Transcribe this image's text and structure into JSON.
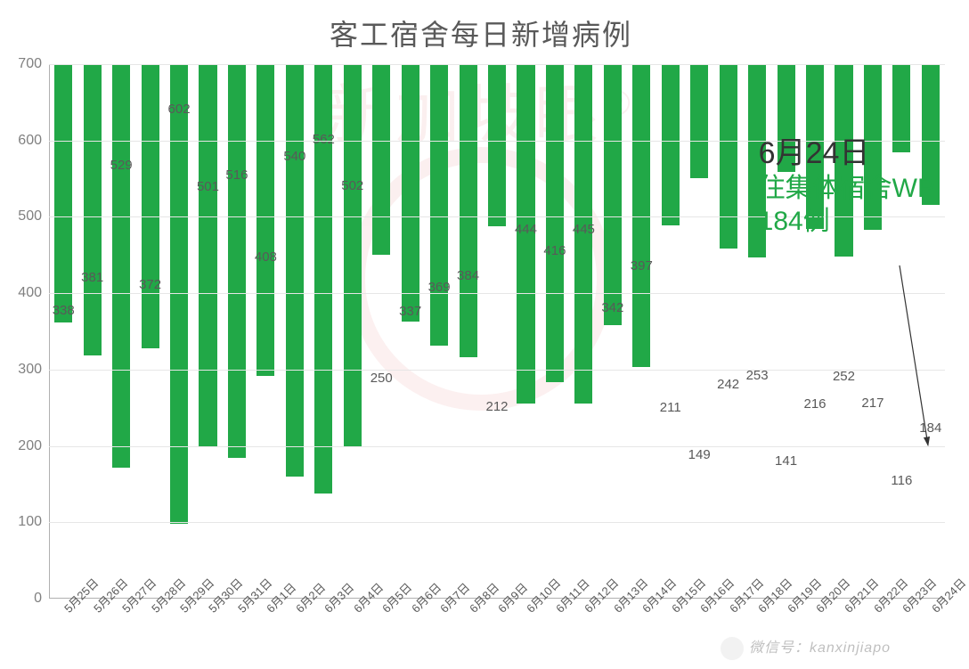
{
  "chart": {
    "type": "bar",
    "title": "客工宿舍每日新增病例",
    "title_fontsize": 32,
    "title_color": "#595959",
    "background_color": "#ffffff",
    "grid_color": "#e6e6e6",
    "axis_color": "#b0b0b0",
    "bar_color": "#21a847",
    "bar_width_ratio": 0.62,
    "ylim": [
      0,
      700
    ],
    "ytick_step": 100,
    "yticks": [
      0,
      100,
      200,
      300,
      400,
      500,
      600,
      700
    ],
    "label_fontsize": 15,
    "label_color": "#595959",
    "xlabel_fontsize": 13,
    "xlabel_rotation_deg": -45,
    "categories": [
      "5月25日",
      "5月26日",
      "5月27日",
      "5月28日",
      "5月29日",
      "5月30日",
      "5月31日",
      "6月1日",
      "6月2日",
      "6月3日",
      "6月4日",
      "6月5日",
      "6月6日",
      "6月7日",
      "6月8日",
      "6月9日",
      "6月10日",
      "6月11日",
      "6月12日",
      "6月13日",
      "6月14日",
      "6月15日",
      "6月16日",
      "6月17日",
      "6月18日",
      "6月19日",
      "6月20日",
      "6月21日",
      "6月22日",
      "6月23日",
      "6月24日"
    ],
    "values": [
      338,
      381,
      529,
      372,
      602,
      501,
      516,
      408,
      540,
      562,
      502,
      250,
      337,
      369,
      384,
      212,
      444,
      416,
      445,
      342,
      397,
      211,
      149,
      242,
      253,
      141,
      216,
      252,
      217,
      116,
      184
    ]
  },
  "annotation": {
    "date": "6月24日",
    "line2": "住集体宿舍WP",
    "line3": "184例",
    "date_fontsize": 34,
    "date_color": "#333333",
    "text_fontsize": 30,
    "text_color": "#21a847",
    "arrow_color": "#333333"
  },
  "watermark": {
    "text": "新加坡眼",
    "r_symbol": "®",
    "color": "#cc0000",
    "opacity": 0.06
  },
  "footer": {
    "text": "微信号：kanxinjiapo"
  }
}
